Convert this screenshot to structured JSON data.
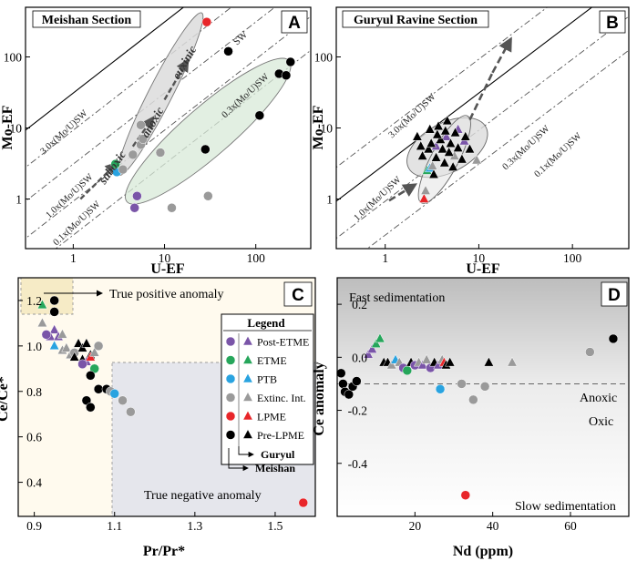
{
  "chart_data": [
    {
      "panel": "A",
      "type": "scatter",
      "title": "Meishan Section",
      "xlabel": "U-EF",
      "ylabel": "Mo-EF",
      "xscale": "log",
      "yscale": "log",
      "xlim": [
        0.3,
        400
      ],
      "ylim": [
        0.2,
        500
      ],
      "xticks": [
        "1",
        "10",
        "100"
      ],
      "yticks": [
        "1",
        "10",
        "100"
      ],
      "sw_lines": [
        "3.0x(Mo/U)SW",
        "1.0x(Mo/U)SW",
        "SW",
        "0.3x(Mo/U)SW",
        "0.1x(Mo/U)SW"
      ],
      "annotations": [
        "suboxic",
        "anoxic",
        "euxinic"
      ],
      "points": [
        {
          "x": 3.0,
          "y": 2.4,
          "group": "PTB"
        },
        {
          "x": 2.9,
          "y": 3.1,
          "group": "ETME"
        },
        {
          "x": 4.7,
          "y": 0.75,
          "group": "Post-ETME"
        },
        {
          "x": 5.0,
          "y": 1.1,
          "group": "Post-ETME"
        },
        {
          "x": 4.5,
          "y": 4.2,
          "group": "Extinc. Int."
        },
        {
          "x": 5.5,
          "y": 5.8,
          "group": "Extinc. Int."
        },
        {
          "x": 5.8,
          "y": 7.0,
          "group": "Extinc. Int."
        },
        {
          "x": 3.5,
          "y": 2.6,
          "group": "Extinc. Int."
        },
        {
          "x": 12,
          "y": 0.75,
          "group": "Extinc. Int."
        },
        {
          "x": 9,
          "y": 4.5,
          "group": "Extinc. Int."
        },
        {
          "x": 30,
          "y": 1.1,
          "group": "Extinc. Int."
        },
        {
          "x": 5.5,
          "y": 11,
          "group": "Extinc. Int."
        },
        {
          "x": 29,
          "y": 310,
          "group": "LPME"
        },
        {
          "x": 50,
          "y": 120,
          "group": "Pre-LPME"
        },
        {
          "x": 28,
          "y": 5.0,
          "group": "Pre-LPME"
        },
        {
          "x": 180,
          "y": 58,
          "group": "Pre-LPME"
        },
        {
          "x": 215,
          "y": 55,
          "group": "Pre-LPME"
        },
        {
          "x": 240,
          "y": 85,
          "group": "Pre-LPME"
        },
        {
          "x": 110,
          "y": 15,
          "group": "Pre-LPME"
        }
      ]
    },
    {
      "panel": "B",
      "type": "scatter",
      "title": "Guryul Ravine Section",
      "xlabel": "U-EF",
      "ylabel": "Mo-EF",
      "xscale": "log",
      "yscale": "log",
      "xlim": [
        0.3,
        400
      ],
      "ylim": [
        0.2,
        500
      ],
      "xticks": [
        "1",
        "10",
        "100"
      ],
      "yticks": [
        "1",
        "10",
        "100"
      ],
      "sw_lines": [
        "3.0x(Mo/U)SW",
        "1.0x(Mo/U)SW",
        "0.3x(Mo/U)SW",
        "0.1x(Mo/U)SW"
      ],
      "points": [
        {
          "x": 2.6,
          "y": 1.0,
          "group": "LPME"
        },
        {
          "x": 2.7,
          "y": 1.3,
          "group": "Extinc. Int."
        },
        {
          "x": 2.8,
          "y": 2.5,
          "group": "ETME"
        },
        {
          "x": 3.0,
          "y": 2.7,
          "group": "PTB"
        },
        {
          "x": 3.2,
          "y": 2.9,
          "group": "Extinc. Int."
        },
        {
          "x": 6.0,
          "y": 9.5,
          "group": "Post-ETME"
        },
        {
          "x": 7.0,
          "y": 6.5,
          "group": "Post-ETME"
        },
        {
          "x": 4.5,
          "y": 7.5,
          "group": "Post-ETME"
        },
        {
          "x": 3.5,
          "y": 5.5,
          "group": "Post-ETME"
        },
        {
          "x": 9.5,
          "y": 3.5,
          "group": "Extinc. Int."
        },
        {
          "x": 5.5,
          "y": 4.0,
          "group": "Extinc. Int."
        },
        {
          "x": 2.2,
          "y": 7.5,
          "group": "Pre-LPME"
        },
        {
          "x": 2.5,
          "y": 4.0,
          "group": "Pre-LPME"
        },
        {
          "x": 2.9,
          "y": 5.0,
          "group": "Pre-LPME"
        },
        {
          "x": 3.0,
          "y": 9.5,
          "group": "Pre-LPME"
        },
        {
          "x": 3.1,
          "y": 6.0,
          "group": "Pre-LPME"
        },
        {
          "x": 3.3,
          "y": 2.2,
          "group": "Pre-LPME"
        },
        {
          "x": 3.5,
          "y": 3.8,
          "group": "Pre-LPME"
        },
        {
          "x": 3.7,
          "y": 10.5,
          "group": "Pre-LPME"
        },
        {
          "x": 3.9,
          "y": 6.8,
          "group": "Pre-LPME"
        },
        {
          "x": 4.1,
          "y": 5.0,
          "group": "Pre-LPME"
        },
        {
          "x": 4.3,
          "y": 3.2,
          "group": "Pre-LPME"
        },
        {
          "x": 4.6,
          "y": 12.5,
          "group": "Pre-LPME"
        },
        {
          "x": 4.8,
          "y": 4.5,
          "group": "Pre-LPME"
        },
        {
          "x": 5.0,
          "y": 6.0,
          "group": "Pre-LPME"
        },
        {
          "x": 5.3,
          "y": 2.8,
          "group": "Pre-LPME"
        },
        {
          "x": 5.6,
          "y": 8.5,
          "group": "Pre-LPME"
        },
        {
          "x": 6.0,
          "y": 5.2,
          "group": "Pre-LPME"
        },
        {
          "x": 6.6,
          "y": 3.6,
          "group": "Pre-LPME"
        },
        {
          "x": 7.2,
          "y": 7.5,
          "group": "Pre-LPME"
        },
        {
          "x": 8.0,
          "y": 5.0,
          "group": "Pre-LPME"
        },
        {
          "x": 3.6,
          "y": 8.0,
          "group": "Pre-LPME"
        },
        {
          "x": 2.4,
          "y": 5.5,
          "group": "Pre-LPME"
        },
        {
          "x": 4.4,
          "y": 9.0,
          "group": "Pre-LPME"
        }
      ]
    },
    {
      "panel": "C",
      "type": "scatter",
      "xlabel": "Pr/Pr*",
      "ylabel": "Ce/Ce*",
      "xlim": [
        0.86,
        1.6
      ],
      "ylim": [
        0.25,
        1.3
      ],
      "xticks": [
        "0.9",
        "1.1",
        "1.3",
        "1.5"
      ],
      "yticks": [
        "0.4",
        "0.6",
        "0.8",
        "1.0",
        "1.2"
      ],
      "annotations": [
        "True positive anomaly",
        "True negative anomaly"
      ],
      "points": [
        {
          "x": 0.92,
          "y": 1.18,
          "group": "ETME",
          "section": "Guryul"
        },
        {
          "x": 0.95,
          "y": 1.2,
          "group": "Pre-LPME",
          "section": "Meishan"
        },
        {
          "x": 0.95,
          "y": 1.15,
          "group": "Pre-LPME",
          "section": "Meishan"
        },
        {
          "x": 0.92,
          "y": 1.1,
          "group": "Extinc. Int.",
          "section": "Guryul"
        },
        {
          "x": 0.95,
          "y": 1.07,
          "group": "Post-ETME",
          "section": "Guryul"
        },
        {
          "x": 0.94,
          "y": 1.04,
          "group": "Post-ETME",
          "section": "Guryul"
        },
        {
          "x": 0.96,
          "y": 1.04,
          "group": "Post-ETME",
          "section": "Guryul"
        },
        {
          "x": 0.93,
          "y": 1.05,
          "group": "Post-ETME",
          "section": "Meishan"
        },
        {
          "x": 0.97,
          "y": 1.05,
          "group": "Extinc. Int.",
          "section": "Guryul"
        },
        {
          "x": 0.95,
          "y": 1.0,
          "group": "PTB",
          "section": "Guryul"
        },
        {
          "x": 0.97,
          "y": 0.98,
          "group": "Extinc. Int.",
          "section": "Guryul"
        },
        {
          "x": 0.98,
          "y": 0.99,
          "group": "Extinc. Int.",
          "section": "Guryul"
        },
        {
          "x": 0.99,
          "y": 0.96,
          "group": "Extinc. Int.",
          "section": "Guryul"
        },
        {
          "x": 1.0,
          "y": 0.97,
          "group": "Extinc. Int.",
          "section": "Meishan"
        },
        {
          "x": 1.01,
          "y": 1.01,
          "group": "Pre-LPME",
          "section": "Guryul"
        },
        {
          "x": 1.02,
          "y": 0.99,
          "group": "Pre-LPME",
          "section": "Guryul"
        },
        {
          "x": 1.03,
          "y": 1.01,
          "group": "Pre-LPME",
          "section": "Guryul"
        },
        {
          "x": 1.0,
          "y": 0.95,
          "group": "Pre-LPME",
          "section": "Guryul"
        },
        {
          "x": 1.02,
          "y": 0.94,
          "group": "Pre-LPME",
          "section": "Guryul"
        },
        {
          "x": 1.04,
          "y": 0.96,
          "group": "Pre-LPME",
          "section": "Guryul"
        },
        {
          "x": 1.03,
          "y": 0.93,
          "group": "Post-ETME",
          "section": "Guryul"
        },
        {
          "x": 1.02,
          "y": 0.92,
          "group": "Post-ETME",
          "section": "Meishan"
        },
        {
          "x": 1.04,
          "y": 0.95,
          "group": "LPME",
          "section": "Guryul"
        },
        {
          "x": 1.05,
          "y": 0.9,
          "group": "ETME",
          "section": "Meishan"
        },
        {
          "x": 1.05,
          "y": 0.97,
          "group": "Extinc. Int.",
          "section": "Guryul"
        },
        {
          "x": 1.06,
          "y": 1.0,
          "group": "Extinc. Int.",
          "section": "Meishan"
        },
        {
          "x": 1.04,
          "y": 0.87,
          "group": "Pre-LPME",
          "section": "Meishan"
        },
        {
          "x": 1.06,
          "y": 0.81,
          "group": "Pre-LPME",
          "section": "Meishan"
        },
        {
          "x": 1.08,
          "y": 0.81,
          "group": "Pre-LPME",
          "section": "Meishan"
        },
        {
          "x": 1.03,
          "y": 0.76,
          "group": "Pre-LPME",
          "section": "Meishan"
        },
        {
          "x": 1.04,
          "y": 0.73,
          "group": "Pre-LPME",
          "section": "Meishan"
        },
        {
          "x": 1.09,
          "y": 0.8,
          "group": "Extinc. Int.",
          "section": "Meishan"
        },
        {
          "x": 1.1,
          "y": 0.79,
          "group": "PTB",
          "section": "Meishan"
        },
        {
          "x": 1.12,
          "y": 0.76,
          "group": "Extinc. Int.",
          "section": "Meishan"
        },
        {
          "x": 1.14,
          "y": 0.71,
          "group": "Extinc. Int.",
          "section": "Meishan"
        },
        {
          "x": 1.57,
          "y": 0.31,
          "group": "LPME",
          "section": "Meishan"
        }
      ]
    },
    {
      "panel": "D",
      "type": "scatter",
      "xlabel": "Nd (ppm)",
      "ylabel": "Ce anomaly",
      "xlim": [
        0,
        75
      ],
      "ylim": [
        -0.6,
        0.3
      ],
      "xticks": [
        "20",
        "40",
        "60"
      ],
      "yticks": [
        "0.2",
        "0.0",
        "-0.2",
        "-0.4"
      ],
      "annotations": [
        "Fast sedimentation",
        "Slow sedimentation",
        "Anoxic",
        "Oxic"
      ],
      "threshold_y": -0.1,
      "points": [
        {
          "x": 1,
          "y": -0.06,
          "group": "Pre-LPME",
          "section": "Meishan"
        },
        {
          "x": 1.5,
          "y": -0.1,
          "group": "Pre-LPME",
          "section": "Meishan"
        },
        {
          "x": 2,
          "y": -0.13,
          "group": "Pre-LPME",
          "section": "Meishan"
        },
        {
          "x": 3,
          "y": -0.14,
          "group": "Pre-LPME",
          "section": "Meishan"
        },
        {
          "x": 4,
          "y": -0.11,
          "group": "Pre-LPME",
          "section": "Meishan"
        },
        {
          "x": 5,
          "y": -0.09,
          "group": "Pre-LPME",
          "section": "Meishan"
        },
        {
          "x": 8,
          "y": 0.01,
          "group": "Post-ETME",
          "section": "Guryul"
        },
        {
          "x": 9,
          "y": 0.03,
          "group": "Post-ETME",
          "section": "Guryul"
        },
        {
          "x": 10,
          "y": 0.05,
          "group": "ETME",
          "section": "Guryul"
        },
        {
          "x": 11,
          "y": 0.07,
          "group": "ETME",
          "section": "Guryul"
        },
        {
          "x": 12,
          "y": -0.02,
          "group": "Pre-LPME",
          "section": "Guryul"
        },
        {
          "x": 13,
          "y": -0.02,
          "group": "Pre-LPME",
          "section": "Guryul"
        },
        {
          "x": 14,
          "y": -0.03,
          "group": "Extinc. Int.",
          "section": "Guryul"
        },
        {
          "x": 15,
          "y": -0.01,
          "group": "PTB",
          "section": "Guryul"
        },
        {
          "x": 16,
          "y": -0.02,
          "group": "Extinc. Int.",
          "section": "Guryul"
        },
        {
          "x": 17,
          "y": -0.04,
          "group": "Post-ETME",
          "section": "Meishan"
        },
        {
          "x": 18,
          "y": -0.05,
          "group": "ETME",
          "section": "Meishan"
        },
        {
          "x": 19,
          "y": -0.02,
          "group": "Pre-LPME",
          "section": "Guryul"
        },
        {
          "x": 20,
          "y": -0.03,
          "group": "Post-ETME",
          "section": "Meishan"
        },
        {
          "x": 21,
          "y": -0.02,
          "group": "Extinc. Int.",
          "section": "Guryul"
        },
        {
          "x": 22,
          "y": -0.03,
          "group": "Post-ETME",
          "section": "Guryul"
        },
        {
          "x": 23,
          "y": -0.01,
          "group": "Extinc. Int.",
          "section": "Guryul"
        },
        {
          "x": 24,
          "y": -0.04,
          "group": "Post-ETME",
          "section": "Meishan"
        },
        {
          "x": 25,
          "y": -0.02,
          "group": "Pre-LPME",
          "section": "Guryul"
        },
        {
          "x": 26,
          "y": -0.03,
          "group": "Post-ETME",
          "section": "Guryul"
        },
        {
          "x": 27,
          "y": -0.01,
          "group": "Extinc. Int.",
          "section": "Guryul"
        },
        {
          "x": 27.5,
          "y": -0.02,
          "group": "LPME",
          "section": "Guryul"
        },
        {
          "x": 28,
          "y": -0.03,
          "group": "Pre-LPME",
          "section": "Guryul"
        },
        {
          "x": 29,
          "y": -0.02,
          "group": "Pre-LPME",
          "section": "Guryul"
        },
        {
          "x": 26.5,
          "y": -0.12,
          "group": "PTB",
          "section": "Meishan"
        },
        {
          "x": 32,
          "y": -0.1,
          "group": "Extinc. Int.",
          "section": "Meishan"
        },
        {
          "x": 35,
          "y": -0.16,
          "group": "Extinc. Int.",
          "section": "Meishan"
        },
        {
          "x": 38,
          "y": -0.11,
          "group": "Extinc. Int.",
          "section": "Meishan"
        },
        {
          "x": 39,
          "y": -0.02,
          "group": "Pre-LPME",
          "section": "Guryul"
        },
        {
          "x": 45,
          "y": -0.02,
          "group": "Extinc. Int.",
          "section": "Guryul"
        },
        {
          "x": 65,
          "y": 0.02,
          "group": "Extinc. Int.",
          "section": "Meishan"
        },
        {
          "x": 71,
          "y": 0.07,
          "group": "Pre-LPME",
          "section": "Meishan"
        },
        {
          "x": 33,
          "y": -0.52,
          "group": "LPME",
          "section": "Meishan"
        }
      ]
    }
  ],
  "legend": {
    "title": "Legend",
    "items": [
      {
        "label": "Post-ETME",
        "color": "#7a55a8"
      },
      {
        "label": "ETME",
        "color": "#26a65b"
      },
      {
        "label": "PTB",
        "color": "#29a3e0"
      },
      {
        "label": "Extinc. Int.",
        "color": "#9a9a9a"
      },
      {
        "label": "LPME",
        "color": "#e8262a"
      },
      {
        "label": "Pre-LPME",
        "color": "#000000"
      }
    ],
    "guryul": "Guryul",
    "meishan": "Meishan"
  },
  "labels": {
    "panel_a": "A",
    "panel_b": "B",
    "panel_c": "C",
    "panel_d": "D",
    "meishan_section": "Meishan Section",
    "guryul_section": "Guryul Ravine Section",
    "mo_ef": "Mo-EF",
    "u_ef": "U-EF",
    "ce_ce": "Ce/Ce*",
    "pr_pr": "Pr/Pr*",
    "ce_anomaly": "Ce anomaly",
    "nd_ppm": "Nd (ppm)",
    "line_3": "3.0x(Mo/U)SW",
    "line_1": "1.0x(Mo/U)SW",
    "line_sw": "SW",
    "line_03": "0.3x(Mo/U)SW",
    "line_01": "0.1x(Mo/U)SW",
    "suboxic": "suboxic",
    "anoxic": "anoxic",
    "euxinic": "euxinic",
    "true_positive": "True positive anomaly",
    "true_negative": "True negative anomaly",
    "fast_sed": "Fast sedimentation",
    "slow_sed": "Slow sedimentation",
    "anoxic_d": "Anoxic",
    "oxic_d": "Oxic",
    "tick_1": "1",
    "tick_10": "10",
    "tick_100": "100",
    "tick_09": "0.9",
    "tick_11": "1.1",
    "tick_13": "1.3",
    "tick_15": "1.5",
    "tick_04": "0.4",
    "tick_06": "0.6",
    "tick_08": "0.8",
    "tick_10c": "1.0",
    "tick_12": "1.2",
    "tick_20": "20",
    "tick_40": "40",
    "tick_60": "60",
    "tick_p02": "0.2",
    "tick_00": "0.0",
    "tick_m02": "-0.2",
    "tick_m04": "-0.4"
  },
  "colors": {
    "post_etme": "#7a55a8",
    "etme": "#26a65b",
    "ptb": "#29a3e0",
    "extinc": "#9a9a9a",
    "lpme": "#e8262a",
    "pre_lpme": "#000000"
  }
}
